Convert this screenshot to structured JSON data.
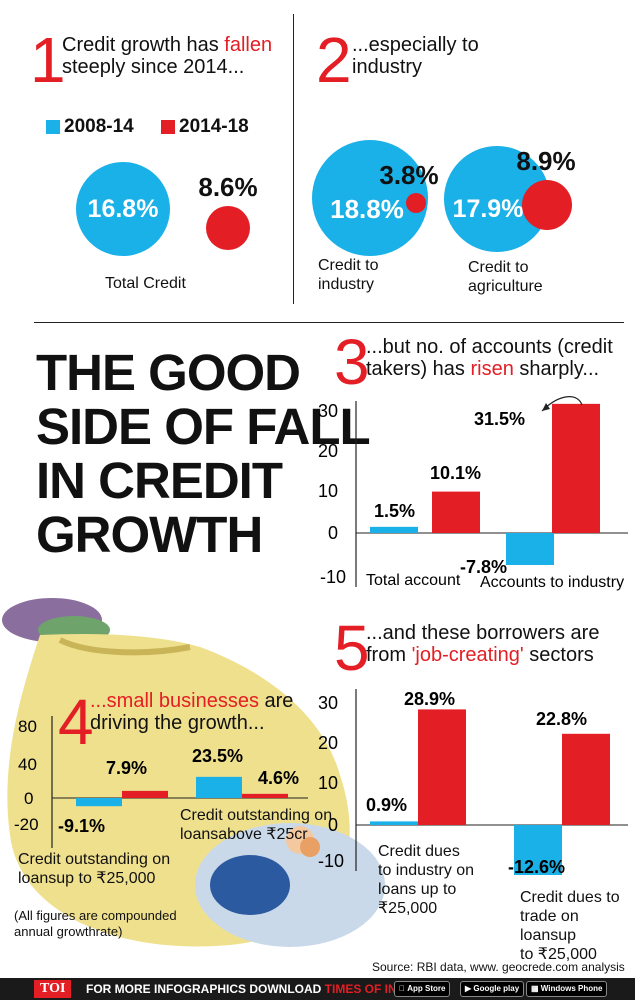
{
  "panel1": {
    "num": "1",
    "title_a": "Credit growth has ",
    "title_red": "fallen",
    "title_b": "steeply since 2014...",
    "caption": "Total Credit"
  },
  "legend": [
    {
      "label": "2008-14",
      "color": "#1ab0e8"
    },
    {
      "label": "2014-18",
      "color": "#e31e24"
    }
  ],
  "panel1_values": {
    "a": "16.8%",
    "b": "8.6%"
  },
  "panel2": {
    "num": "2",
    "title": "...especially to industry",
    "cap_industry_1": "Credit to",
    "cap_industry_2": "industry",
    "cap_agri_1": "Credit to",
    "cap_agri_2": "agriculture",
    "ind_a": "18.8%",
    "ind_b": "3.8%",
    "agr_a": "17.9%",
    "agr_b": "8.9%"
  },
  "headline": {
    "l1": "THE GOOD",
    "l2": "SIDE OF FALL",
    "l3": "IN CREDIT",
    "l4": "GROWTH"
  },
  "panel3": {
    "num": "3",
    "title_a": "...but no. of accounts (credit",
    "title_b": "takers) has ",
    "title_red": "risen",
    "title_c": " sharply..."
  },
  "panel4": {
    "num": "4",
    "title_red": "...small businesses",
    "title_a": " are",
    "title_b": "driving the growth...",
    "cap1_1": "Credit outstanding on",
    "cap1_2": "loansup to ₹25,000",
    "cap2_1": "Credit outstanding on",
    "cap2_2": "loansabove ₹25cr",
    "note_1": "(All figures are compounded",
    "note_2": "annual growthrate)"
  },
  "panel5": {
    "num": "5",
    "title_a": "...and these borrowers are",
    "title_b": "from ",
    "title_red": "'job-creating'",
    "title_c": " sectors",
    "cap1": [
      "Credit dues",
      "to industry on",
      "loans up to",
      "₹25,000"
    ],
    "cap2": [
      "Credit dues to",
      "trade on loansup",
      "to ₹25,000"
    ]
  },
  "source": "Source: RBI data, www. geocrede.com analysis",
  "footer": {
    "toi": "TOI",
    "text_a": "FOR MORE  INFOGRAPHICS DOWNLOAD ",
    "text_b": "TIMES OF INDIA APP",
    "b1": "App Store",
    "b2": "Google play",
    "b3": "Windows Phone"
  },
  "chart_data": [
    {
      "type": "bar",
      "title": "...but no. of accounts (credit takers) has risen sharply...",
      "categories": [
        "Total account",
        "Accounts to industry"
      ],
      "series": [
        {
          "name": "2008-14",
          "values": [
            1.5,
            -7.8
          ]
        },
        {
          "name": "2014-18",
          "values": [
            10.1,
            31.5
          ]
        }
      ],
      "value_labels": [
        [
          "1.5%",
          "-7.8%"
        ],
        [
          "10.1%",
          "31.5%"
        ]
      ],
      "yticks": [
        "30",
        "20",
        "10",
        "0",
        "-10"
      ],
      "ylim": [
        -10,
        30
      ]
    },
    {
      "type": "bar",
      "title": "...small businesses are driving the growth...",
      "categories": [
        "Credit outstanding on loansup to ₹25,000",
        "Credit outstanding on loansabove ₹25cr"
      ],
      "series": [
        {
          "name": "2008-14",
          "values": [
            -9.1,
            23.5
          ]
        },
        {
          "name": "2014-18",
          "values": [
            7.9,
            4.6
          ]
        }
      ],
      "value_labels": [
        [
          "-9.1%",
          "23.5%"
        ],
        [
          "7.9%",
          "4.6%"
        ]
      ],
      "yticks": [
        "80",
        "40",
        "0",
        "-20"
      ],
      "ylim": [
        -20,
        80
      ]
    },
    {
      "type": "bar",
      "title": "...and these borrowers are from 'job-creating' sectors",
      "categories": [
        "Credit dues to industry on loans up to ₹25,000",
        "Credit dues to trade on loansup to ₹25,000"
      ],
      "series": [
        {
          "name": "2008-14",
          "values": [
            0.9,
            -12.6
          ]
        },
        {
          "name": "2014-18",
          "values": [
            28.9,
            22.8
          ]
        }
      ],
      "value_labels": [
        [
          "0.9%",
          "-12.6%"
        ],
        [
          "28.9%",
          "22.8%"
        ]
      ],
      "yticks": [
        "30",
        "20",
        "10",
        "0",
        "-10"
      ],
      "ylim": [
        -10,
        30
      ]
    }
  ]
}
